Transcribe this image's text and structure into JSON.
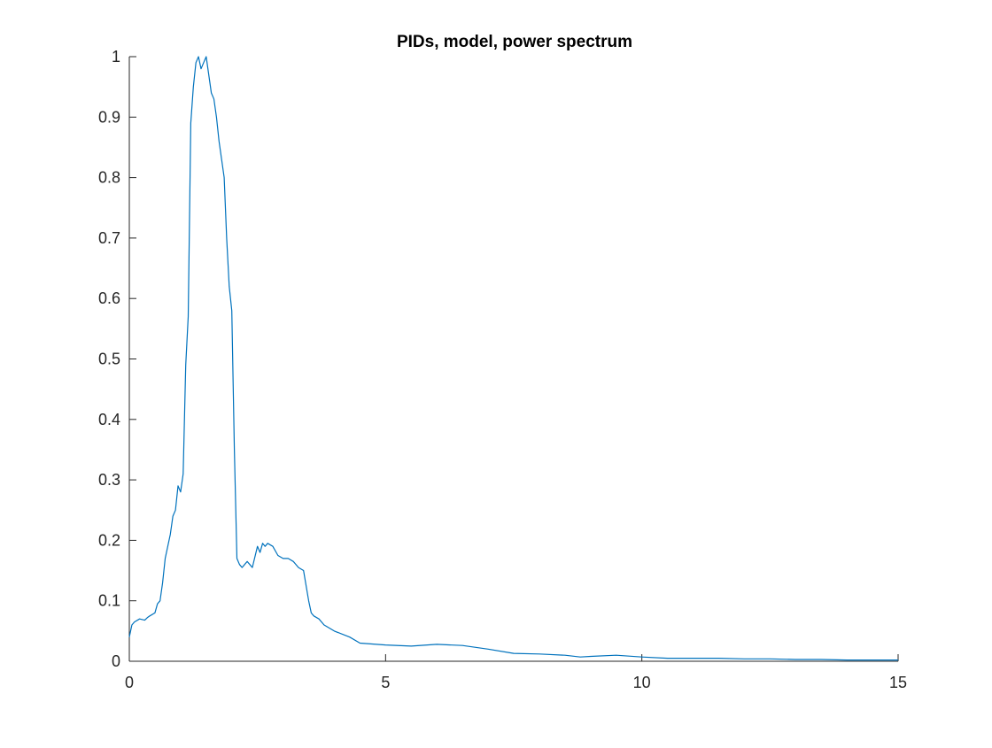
{
  "chart_data": {
    "type": "line",
    "title": "PIDs, model, power spectrum",
    "xlabel": "",
    "ylabel": "",
    "xlim": [
      0,
      15
    ],
    "ylim": [
      0,
      1
    ],
    "x_ticks": [
      0,
      5,
      10,
      15
    ],
    "x_tick_labels": [
      "0",
      "5",
      "10",
      "15"
    ],
    "y_ticks": [
      0,
      0.1,
      0.2,
      0.3,
      0.4,
      0.5,
      0.6,
      0.7,
      0.8,
      0.9,
      1
    ],
    "y_tick_labels": [
      "0",
      "0.1",
      "0.2",
      "0.3",
      "0.4",
      "0.5",
      "0.6",
      "0.7",
      "0.8",
      "0.9",
      "1"
    ],
    "grid": false,
    "line_color": "#0072BD",
    "series": [
      {
        "x": [
          0,
          0.05,
          0.1,
          0.2,
          0.3,
          0.35,
          0.4,
          0.5,
          0.55,
          0.6,
          0.65,
          0.7,
          0.75,
          0.8,
          0.85,
          0.9,
          0.95,
          1.0,
          1.05,
          1.1,
          1.15,
          1.2,
          1.25,
          1.3,
          1.35,
          1.4,
          1.45,
          1.5,
          1.55,
          1.6,
          1.65,
          1.7,
          1.75,
          1.8,
          1.85,
          1.9,
          1.95,
          2.0,
          2.05,
          2.1,
          2.15,
          2.2,
          2.25,
          2.3,
          2.35,
          2.4,
          2.5,
          2.55,
          2.6,
          2.65,
          2.7,
          2.8,
          2.9,
          3.0,
          3.1,
          3.2,
          3.3,
          3.4,
          3.5,
          3.55,
          3.6,
          3.7,
          3.8,
          4.0,
          4.3,
          4.5,
          5.0,
          5.5,
          6.0,
          6.5,
          7.0,
          7.5,
          8.0,
          8.5,
          8.8,
          9.0,
          9.5,
          10.0,
          10.5,
          11.0,
          11.5,
          12.0,
          12.5,
          13.0,
          13.5,
          14.0,
          14.5,
          15.0
        ],
        "y": [
          0.04,
          0.06,
          0.065,
          0.07,
          0.068,
          0.072,
          0.075,
          0.08,
          0.095,
          0.1,
          0.13,
          0.17,
          0.19,
          0.21,
          0.24,
          0.25,
          0.29,
          0.28,
          0.31,
          0.49,
          0.57,
          0.89,
          0.95,
          0.99,
          1.0,
          0.98,
          0.99,
          1.0,
          0.97,
          0.94,
          0.93,
          0.9,
          0.86,
          0.83,
          0.8,
          0.7,
          0.62,
          0.58,
          0.35,
          0.17,
          0.16,
          0.155,
          0.16,
          0.165,
          0.16,
          0.155,
          0.19,
          0.18,
          0.195,
          0.19,
          0.195,
          0.19,
          0.175,
          0.17,
          0.17,
          0.165,
          0.155,
          0.15,
          0.1,
          0.08,
          0.075,
          0.07,
          0.06,
          0.05,
          0.04,
          0.03,
          0.027,
          0.025,
          0.028,
          0.026,
          0.02,
          0.013,
          0.012,
          0.01,
          0.007,
          0.008,
          0.01,
          0.007,
          0.005,
          0.005,
          0.005,
          0.004,
          0.004,
          0.003,
          0.003,
          0.002,
          0.002,
          0.002
        ]
      }
    ]
  }
}
